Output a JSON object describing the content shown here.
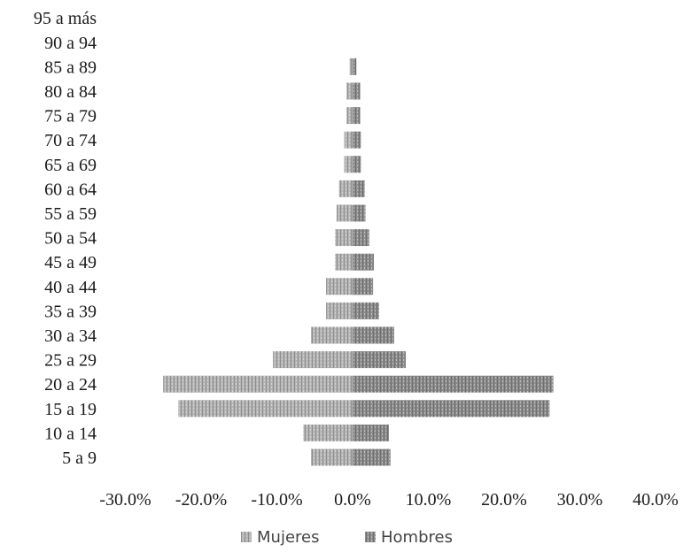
{
  "chart_data": {
    "type": "bar",
    "orientation": "horizontal",
    "subtype": "population-pyramid",
    "title": "",
    "xlabel": "",
    "ylabel": "",
    "categories": [
      "5 a 9",
      "10 a 14",
      "15 a 19",
      "20 a 24",
      "25 a 29",
      "30 a 34",
      "35 a 39",
      "40 a 44",
      "45 a 49",
      "50 a 54",
      "55 a 59",
      "60 a 64",
      "65 a 69",
      "70 a 74",
      "75 a 79",
      "80 a 84",
      "85 a 89",
      "90 a 94",
      "95 a más"
    ],
    "series": [
      {
        "name": "Mujeres",
        "color": "#a9a9a9",
        "values": [
          -5.5,
          -6.5,
          -23.0,
          -25.0,
          -10.5,
          -5.5,
          -3.5,
          -3.5,
          -2.3,
          -2.3,
          -2.1,
          -1.8,
          -1.1,
          -1.1,
          -0.8,
          -0.8,
          -0.4,
          0,
          0
        ]
      },
      {
        "name": "Hombres",
        "color": "#8a8a8a",
        "values": [
          5.0,
          4.8,
          26.0,
          26.5,
          7.0,
          5.5,
          3.5,
          2.7,
          2.8,
          2.2,
          1.7,
          1.6,
          1.1,
          1.1,
          1.0,
          1.0,
          0.5,
          0,
          0
        ]
      }
    ],
    "xlim": [
      -30,
      40
    ],
    "xticks": [
      "-30.0%",
      "-20.0%",
      "-10.0%",
      "0.0%",
      "10.0%",
      "20.0%",
      "30.0%",
      "40.0%"
    ],
    "xtick_values": [
      -30,
      -20,
      -10,
      0,
      10,
      20,
      30,
      40
    ],
    "legend": {
      "position": "bottom",
      "entries": [
        "Mujeres",
        "Hombres"
      ]
    },
    "grid": false
  }
}
